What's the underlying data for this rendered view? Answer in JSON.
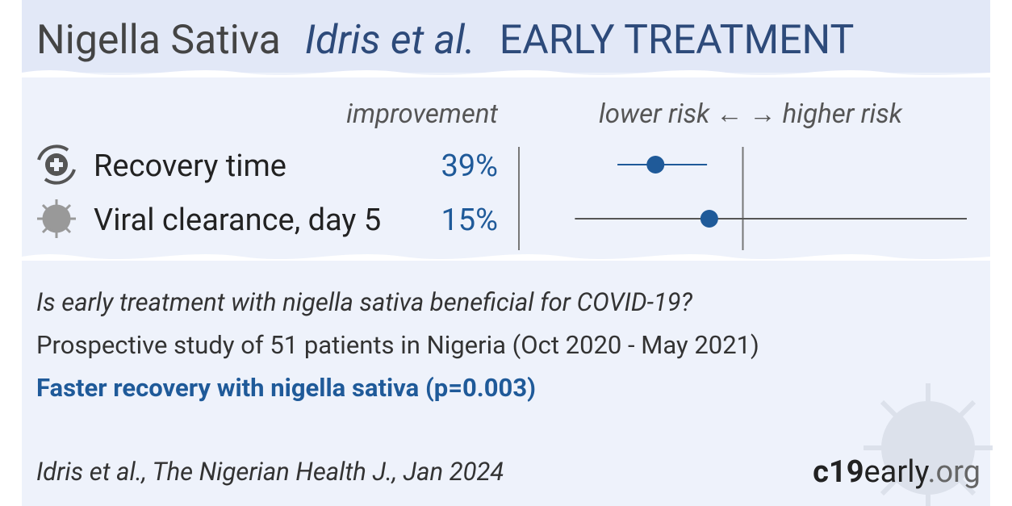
{
  "header": {
    "parts": [
      "Nigella Sativa",
      "Idris et al.",
      "EARLY TREATMENT"
    ]
  },
  "chart_data": {
    "type": "forest",
    "column_header": "improvement",
    "axis_label": "lower risk ← → higher risk",
    "categories": [
      "Recovery time",
      "Viral clearance, day 5"
    ],
    "value_labels": [
      "39%",
      "15%"
    ],
    "values": [
      0.61,
      0.85
    ],
    "ci_low": [
      0.44,
      0.25
    ],
    "ci_high": [
      0.84,
      2.0
    ],
    "xlim": [
      0,
      2
    ],
    "ref_line": 1,
    "colors": [
      "#1f5a99",
      "#555555"
    ],
    "point_color": "#1f5a99"
  },
  "summary": {
    "question": "Is early treatment with nigella sativa beneficial for COVID-19?",
    "study": "Prospective study of 51 patients in Nigeria (Oct 2020 - May 2021)",
    "result": "Faster recovery with nigella sativa (p=0.003)",
    "citation": "Idris et al., The Nigerian Health J., Jan 2024",
    "logo": [
      "c19",
      "early",
      ".org"
    ]
  }
}
